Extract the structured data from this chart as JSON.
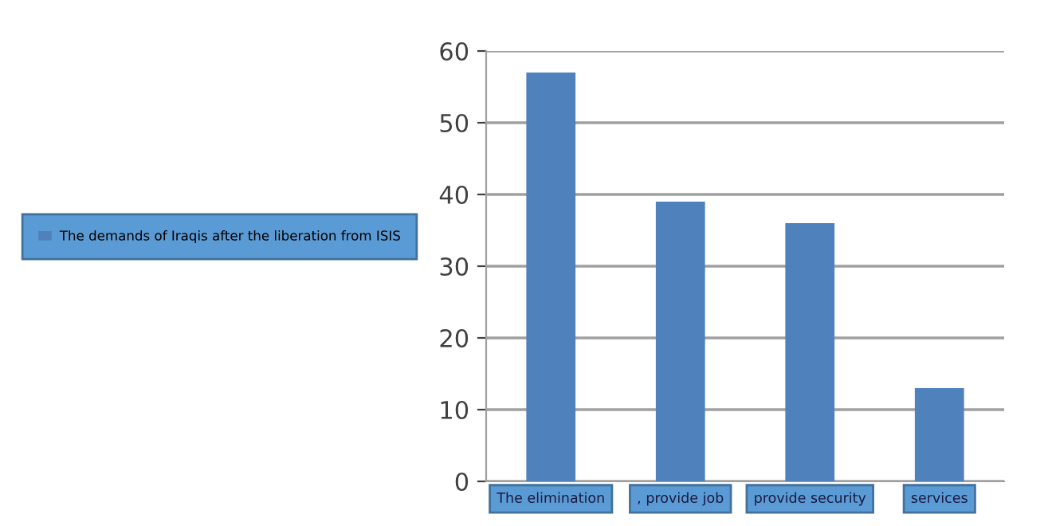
{
  "chart_data": {
    "type": "bar",
    "categories": [
      "The elimination",
      ", provide job",
      "provide security",
      "services"
    ],
    "series": [
      {
        "name": "The demands of Iraqis after the liberation from ISIS",
        "color": "#4f81bd",
        "values": [
          57,
          39,
          36,
          13
        ]
      }
    ],
    "ylim": [
      0,
      60
    ],
    "yticks": [
      0,
      10,
      20,
      30,
      40,
      50,
      60
    ],
    "grid": "y",
    "legend": "left"
  }
}
